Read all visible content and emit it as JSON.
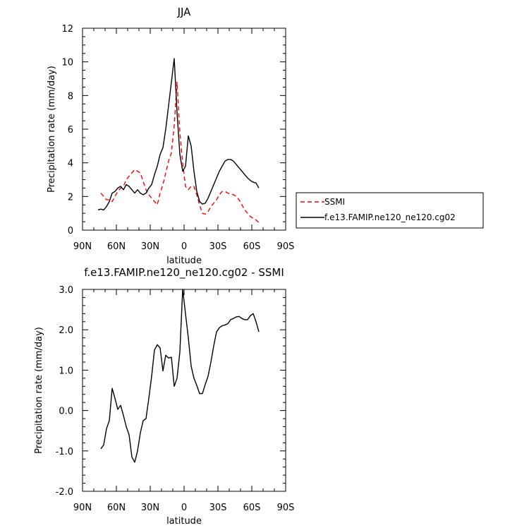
{
  "chart_data": [
    {
      "type": "line",
      "title": "JJA",
      "xlabel": "latitude",
      "ylabel": "Precipitation rate (mm/day)",
      "xlim": [
        90,
        -90
      ],
      "ylim": [
        0,
        12
      ],
      "x_tick_values": [
        90,
        60,
        30,
        0,
        -30,
        -60,
        -90
      ],
      "x_tick_labels": [
        "90N",
        "60N",
        "30N",
        "0",
        "30S",
        "60S",
        "90S"
      ],
      "y_tick_values": [
        0,
        2,
        4,
        6,
        8,
        10,
        12
      ],
      "y_tick_labels": [
        "0",
        "2",
        "4",
        "6",
        "8",
        "10",
        "12"
      ],
      "legend_position": "outside-right",
      "series": [
        {
          "name": "SSMI",
          "color": "#ff0000",
          "dash": "dashed",
          "x": [
            73.75,
            71.25,
            68.75,
            66.25,
            63.75,
            61.25,
            58.75,
            56.25,
            53.75,
            51.25,
            48.75,
            46.25,
            43.75,
            41.25,
            38.75,
            36.25,
            33.75,
            31.25,
            28.75,
            26.25,
            23.75,
            21.25,
            18.75,
            16.25,
            13.75,
            11.25,
            8.75,
            6.25,
            3.75,
            1.25,
            -1.25,
            -3.75,
            -6.25,
            -8.75,
            -11.25,
            -13.75,
            -16.25,
            -18.75,
            -21.25,
            -23.75,
            -26.25,
            -28.75,
            -31.25,
            -33.75,
            -36.25,
            -38.75,
            -41.25,
            -43.75,
            -46.25,
            -48.75,
            -51.25,
            -53.75,
            -56.25,
            -58.75,
            -61.25,
            -63.75,
            -66.25
          ],
          "y": [
            2.2,
            2.0,
            1.8,
            1.8,
            1.7,
            2.0,
            2.3,
            2.5,
            2.6,
            3.0,
            3.2,
            3.4,
            3.6,
            3.5,
            3.4,
            2.9,
            2.4,
            2.1,
            1.9,
            1.7,
            1.5,
            2.2,
            2.7,
            3.4,
            4.1,
            4.6,
            6.2,
            8.8,
            5.8,
            4.0,
            2.6,
            2.4,
            2.6,
            2.6,
            2.1,
            1.5,
            1.0,
            0.95,
            1.1,
            1.4,
            1.6,
            1.8,
            2.1,
            2.3,
            2.3,
            2.2,
            2.15,
            2.1,
            2.0,
            1.8,
            1.5,
            1.2,
            1.0,
            0.8,
            0.7,
            0.6,
            0.45
          ]
        },
        {
          "name": "f.e13.FAMIP.ne120_ne120.cg02",
          "color": "#000000",
          "dash": "solid",
          "x": [
            76.25,
            73.75,
            71.25,
            68.75,
            66.25,
            63.75,
            61.25,
            58.75,
            56.25,
            53.75,
            51.25,
            48.75,
            46.25,
            43.75,
            41.25,
            38.75,
            36.25,
            33.75,
            31.25,
            28.75,
            26.25,
            23.75,
            21.25,
            18.75,
            16.25,
            13.75,
            11.25,
            8.75,
            6.25,
            3.75,
            1.25,
            -1.25,
            -3.75,
            -6.25,
            -8.75,
            -11.25,
            -13.75,
            -16.25,
            -18.75,
            -21.25,
            -23.75,
            -26.25,
            -28.75,
            -31.25,
            -33.75,
            -36.25,
            -38.75,
            -41.25,
            -43.75,
            -46.25,
            -48.75,
            -51.25,
            -53.75,
            -56.25,
            -58.75,
            -61.25,
            -63.75,
            -66.25
          ],
          "y": [
            1.2,
            1.25,
            1.2,
            1.4,
            1.7,
            2.2,
            2.3,
            2.5,
            2.6,
            2.4,
            2.7,
            2.6,
            2.4,
            2.2,
            2.4,
            2.2,
            2.1,
            2.2,
            2.5,
            2.7,
            3.3,
            3.8,
            4.5,
            4.9,
            6.0,
            7.4,
            8.8,
            10.2,
            7.0,
            4.5,
            3.5,
            3.8,
            5.6,
            5.0,
            3.5,
            2.3,
            1.7,
            1.55,
            1.6,
            1.9,
            2.3,
            2.7,
            3.1,
            3.5,
            3.8,
            4.1,
            4.2,
            4.2,
            4.1,
            3.9,
            3.7,
            3.5,
            3.3,
            3.1,
            2.95,
            2.85,
            2.8,
            2.5
          ]
        }
      ]
    },
    {
      "type": "line",
      "title": "f.e13.FAMIP.ne120_ne120.cg02 - SSMI",
      "xlabel": "latitude",
      "ylabel": "Precipitation rate (mm/day)",
      "xlim": [
        90,
        -90
      ],
      "ylim": [
        -2,
        3
      ],
      "x_tick_values": [
        90,
        60,
        30,
        0,
        -30,
        -60,
        -90
      ],
      "x_tick_labels": [
        "90N",
        "60N",
        "30N",
        "0",
        "30S",
        "60S",
        "90S"
      ],
      "y_tick_values": [
        -2,
        -1,
        0,
        1,
        2,
        3
      ],
      "y_tick_labels": [
        "-2.0",
        "-1.0",
        "0.0",
        "1.0",
        "2.0",
        "3.0"
      ],
      "series": [
        {
          "color": "#000000",
          "dash": "solid",
          "x": [
            73.75,
            71.25,
            68.75,
            66.25,
            63.75,
            61.25,
            58.75,
            56.25,
            53.75,
            51.25,
            48.75,
            46.25,
            43.75,
            41.25,
            38.75,
            36.25,
            33.75,
            31.25,
            28.75,
            26.25,
            23.75,
            21.25,
            18.75,
            16.25,
            13.75,
            11.25,
            8.75,
            6.25,
            3.75,
            1.25,
            -1.25,
            -3.75,
            -6.25,
            -8.75,
            -11.25,
            -13.75,
            -16.25,
            -18.75,
            -21.25,
            -23.75,
            -26.25,
            -28.75,
            -31.25,
            -33.75,
            -36.25,
            -38.75,
            -41.25,
            -43.75,
            -46.25,
            -48.75,
            -51.25,
            -53.75,
            -56.25,
            -58.75,
            -61.25,
            -63.75,
            -66.25
          ],
          "y": [
            -0.95,
            -0.85,
            -0.45,
            -0.25,
            0.55,
            0.3,
            0.03,
            0.13,
            -0.12,
            -0.4,
            -0.6,
            -1.15,
            -1.28,
            -1.0,
            -0.55,
            -0.25,
            -0.2,
            0.3,
            0.85,
            1.5,
            1.63,
            1.55,
            0.98,
            1.37,
            1.3,
            1.32,
            0.6,
            0.8,
            1.45,
            3.0,
            2.4,
            1.8,
            1.1,
            0.8,
            0.62,
            0.42,
            0.42,
            0.65,
            0.85,
            1.2,
            1.6,
            1.95,
            2.05,
            2.1,
            2.12,
            2.15,
            2.25,
            2.28,
            2.32,
            2.33,
            2.28,
            2.25,
            2.25,
            2.35,
            2.4,
            2.2,
            1.95
          ]
        }
      ]
    }
  ]
}
